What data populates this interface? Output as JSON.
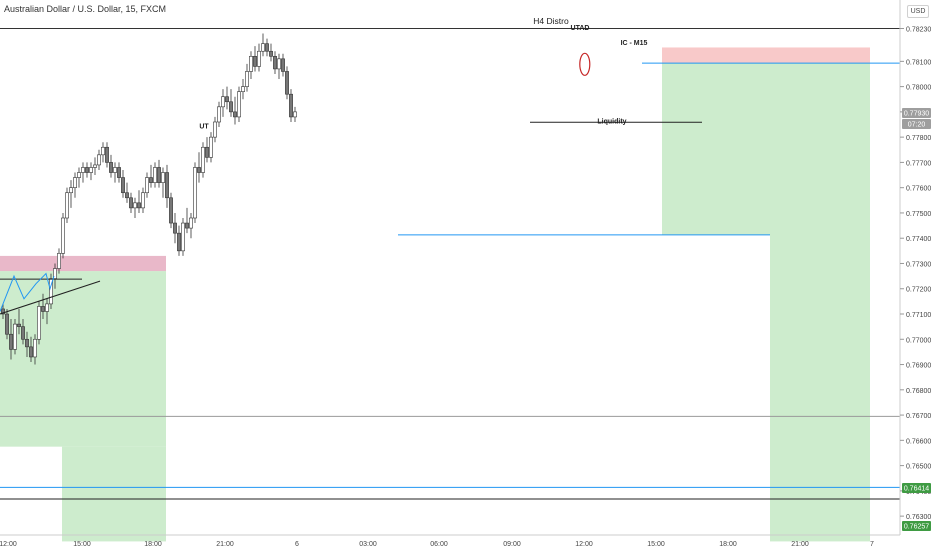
{
  "header": {
    "symbol_title": "Australian Dollar / U.S. Dollar, 15, FXCM",
    "currency": "USD"
  },
  "chart_data": {
    "type": "candlestick",
    "title": "H4 Distro",
    "x_ticks": [
      "12:00",
      "15:00",
      "18:00",
      "21:00",
      "6",
      "03:00",
      "06:00",
      "09:00",
      "12:00",
      "15:00",
      "18:00",
      "21:00",
      "7"
    ],
    "y_ticks": [
      0.7823,
      0.781,
      0.78,
      0.779,
      0.778,
      0.777,
      0.776,
      0.775,
      0.774,
      0.773,
      0.772,
      0.771,
      0.77,
      0.769,
      0.768,
      0.767,
      0.766,
      0.765,
      0.764,
      0.763
    ],
    "ylim": [
      0.76257,
      0.78355
    ],
    "price_badges": [
      {
        "value": "0.77930",
        "color": "#9e9e9e"
      },
      {
        "value": "07:20",
        "color": "#9e9e9e"
      },
      {
        "value": "0.76414",
        "color": "#3f9b43"
      },
      {
        "value": "0.76257",
        "color": "#3f9b43"
      }
    ],
    "annotations": [
      {
        "text": "UT",
        "x": 50.5,
        "y": 0.7785
      },
      {
        "text": "UTAD",
        "x": 144.5,
        "y": 0.7824
      },
      {
        "text": "IC - M15",
        "x": 158,
        "y": 0.7818
      },
      {
        "text": "Liquidity",
        "x": 152.5,
        "y": 0.7787
      }
    ],
    "horizontal_lines": [
      {
        "price": 0.7823,
        "x0": -1,
        "x1": 240,
        "color": "#333333",
        "role": "top-border"
      },
      {
        "price": 0.78093,
        "x0": 160,
        "x1": 229,
        "color": "#2196f3"
      },
      {
        "price": 0.77413,
        "x0": 99,
        "x1": 192,
        "color": "#2196f3"
      },
      {
        "price": 0.77859,
        "x0": 132,
        "x1": 175,
        "color": "#222222"
      },
      {
        "price": 0.76695,
        "x0": -1,
        "x1": 240,
        "color": "#999999"
      },
      {
        "price": 0.76414,
        "x0": -1,
        "x1": 240,
        "color": "#2196f3"
      },
      {
        "price": 0.76368,
        "x0": -1,
        "x1": 240,
        "color": "#222222"
      }
    ],
    "zones": [
      {
        "x0": -1,
        "x1": 41,
        "y0": 0.7727,
        "y1": 0.76575,
        "color": "#cdeccd"
      },
      {
        "x0": 15,
        "x1": 41,
        "y0": 0.76575,
        "y1": 0.762,
        "color": "#cdeccd"
      },
      {
        "x0": 165,
        "x1": 192,
        "y0": 0.78093,
        "y1": 0.77413,
        "color": "#cdeccd"
      },
      {
        "x0": 192,
        "x1": 217,
        "y0": 0.78093,
        "y1": 0.762,
        "color": "#cdeccd"
      },
      {
        "x0": 165,
        "x1": 217,
        "y0": 0.78155,
        "y1": 0.78093,
        "color": "#f8c9c9"
      },
      {
        "x0": -1,
        "x1": 41,
        "y0": 0.7733,
        "y1": 0.7727,
        "color": "#e9b8c9"
      }
    ],
    "candles": [
      [
        0.7712,
        0.7714,
        0.7708,
        0.771
      ],
      [
        0.771,
        0.7712,
        0.77,
        0.7702
      ],
      [
        0.7702,
        0.7708,
        0.7692,
        0.7696
      ],
      [
        0.7696,
        0.7708,
        0.7694,
        0.7706
      ],
      [
        0.7706,
        0.7712,
        0.7702,
        0.7705
      ],
      [
        0.7705,
        0.7708,
        0.7698,
        0.77
      ],
      [
        0.77,
        0.7703,
        0.7693,
        0.7697
      ],
      [
        0.7697,
        0.7701,
        0.7691,
        0.7693
      ],
      [
        0.7693,
        0.7702,
        0.769,
        0.77
      ],
      [
        0.77,
        0.7715,
        0.7698,
        0.7713
      ],
      [
        0.7713,
        0.7718,
        0.7708,
        0.7711
      ],
      [
        0.7711,
        0.7716,
        0.7706,
        0.7714
      ],
      [
        0.7714,
        0.7726,
        0.7712,
        0.7724
      ],
      [
        0.7724,
        0.773,
        0.772,
        0.7728
      ],
      [
        0.7728,
        0.7736,
        0.7726,
        0.7734
      ],
      [
        0.7734,
        0.775,
        0.7732,
        0.7748
      ],
      [
        0.7748,
        0.776,
        0.7746,
        0.7758
      ],
      [
        0.7758,
        0.7763,
        0.7752,
        0.776
      ],
      [
        0.776,
        0.7766,
        0.7756,
        0.7764
      ],
      [
        0.7764,
        0.7768,
        0.776,
        0.7766
      ],
      [
        0.7766,
        0.777,
        0.7762,
        0.7768
      ],
      [
        0.7768,
        0.777,
        0.7764,
        0.7766
      ],
      [
        0.7766,
        0.777,
        0.7763,
        0.7768
      ],
      [
        0.7768,
        0.7772,
        0.7765,
        0.7769
      ],
      [
        0.7769,
        0.7775,
        0.7767,
        0.7773
      ],
      [
        0.7773,
        0.7778,
        0.777,
        0.7776
      ],
      [
        0.7776,
        0.7778,
        0.7768,
        0.777
      ],
      [
        0.777,
        0.7773,
        0.7764,
        0.7766
      ],
      [
        0.7766,
        0.777,
        0.7762,
        0.7768
      ],
      [
        0.7768,
        0.777,
        0.7762,
        0.7764
      ],
      [
        0.7764,
        0.7767,
        0.7756,
        0.7758
      ],
      [
        0.7758,
        0.7762,
        0.7754,
        0.7756
      ],
      [
        0.7756,
        0.7758,
        0.775,
        0.7752
      ],
      [
        0.7752,
        0.7756,
        0.7748,
        0.7754
      ],
      [
        0.7754,
        0.7759,
        0.775,
        0.7752
      ],
      [
        0.7752,
        0.776,
        0.775,
        0.7758
      ],
      [
        0.7758,
        0.7766,
        0.7756,
        0.7764
      ],
      [
        0.7764,
        0.7769,
        0.776,
        0.7762
      ],
      [
        0.7762,
        0.777,
        0.776,
        0.7768
      ],
      [
        0.7768,
        0.7771,
        0.776,
        0.7762
      ],
      [
        0.7762,
        0.7768,
        0.7756,
        0.7766
      ],
      [
        0.7766,
        0.7769,
        0.7752,
        0.7756
      ],
      [
        0.7756,
        0.7758,
        0.7744,
        0.7746
      ],
      [
        0.7746,
        0.775,
        0.7738,
        0.7742
      ],
      [
        0.7742,
        0.7745,
        0.7733,
        0.7735
      ],
      [
        0.7735,
        0.7748,
        0.7733,
        0.7746
      ],
      [
        0.7746,
        0.7752,
        0.7742,
        0.7744
      ],
      [
        0.7744,
        0.775,
        0.774,
        0.7748
      ],
      [
        0.7748,
        0.777,
        0.7746,
        0.7768
      ],
      [
        0.7768,
        0.7774,
        0.7762,
        0.7766
      ],
      [
        0.7766,
        0.7778,
        0.7764,
        0.7776
      ],
      [
        0.7776,
        0.778,
        0.777,
        0.7772
      ],
      [
        0.7772,
        0.7782,
        0.777,
        0.778
      ],
      [
        0.778,
        0.7788,
        0.7778,
        0.7786
      ],
      [
        0.7786,
        0.7794,
        0.7784,
        0.7792
      ],
      [
        0.7792,
        0.7799,
        0.7788,
        0.7796
      ],
      [
        0.7796,
        0.78,
        0.7791,
        0.7794
      ],
      [
        0.7794,
        0.7799,
        0.7788,
        0.779
      ],
      [
        0.779,
        0.7796,
        0.7785,
        0.7788
      ],
      [
        0.7788,
        0.78,
        0.7786,
        0.7798
      ],
      [
        0.7798,
        0.7803,
        0.7795,
        0.78
      ],
      [
        0.78,
        0.7809,
        0.7798,
        0.7806
      ],
      [
        0.7806,
        0.7814,
        0.7803,
        0.7812
      ],
      [
        0.7812,
        0.7816,
        0.7806,
        0.7808
      ],
      [
        0.7808,
        0.7817,
        0.7806,
        0.7814
      ],
      [
        0.7814,
        0.7821,
        0.7812,
        0.7817
      ],
      [
        0.7817,
        0.7819,
        0.7812,
        0.7814
      ],
      [
        0.7814,
        0.7817,
        0.781,
        0.7812
      ],
      [
        0.7812,
        0.7814,
        0.7805,
        0.7807
      ],
      [
        0.7807,
        0.7813,
        0.7803,
        0.7811
      ],
      [
        0.7811,
        0.7813,
        0.7804,
        0.7806
      ],
      [
        0.7806,
        0.7808,
        0.7795,
        0.7797
      ],
      [
        0.7797,
        0.7799,
        0.7786,
        0.7788
      ],
      [
        0.7788,
        0.7792,
        0.7786,
        0.779
      ]
    ]
  }
}
